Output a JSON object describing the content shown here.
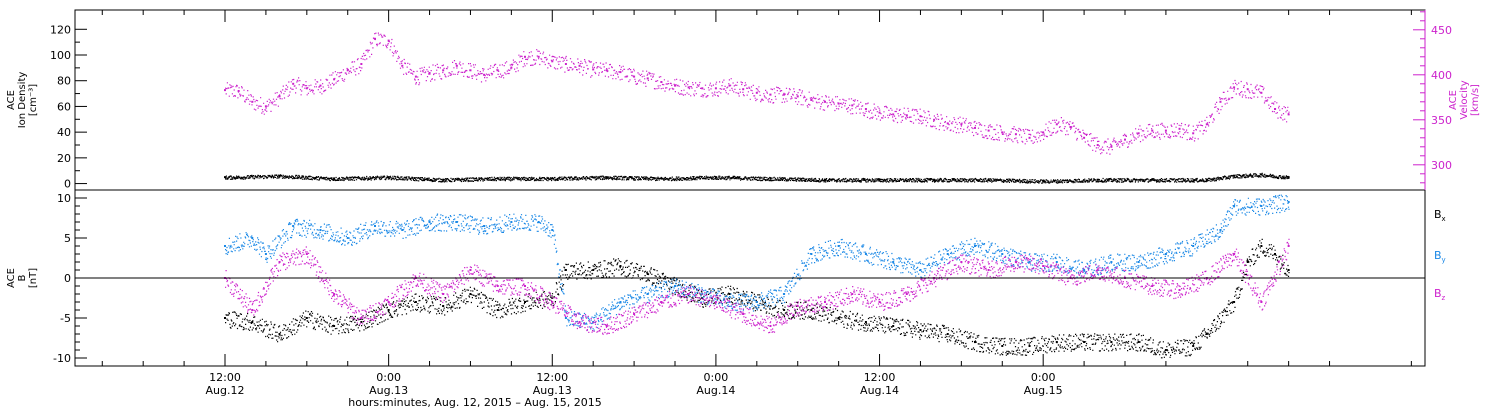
{
  "chart_data": [
    {
      "type": "scatter",
      "panel": "top",
      "ylabel_left": [
        "ACE",
        "Ion Density",
        "[cm⁻³]"
      ],
      "ylabel_right": [
        "ACE",
        "Velocity",
        "[km/s]"
      ],
      "left_axis": {
        "range": [
          -5,
          135
        ],
        "ticks": [
          0,
          20,
          40,
          60,
          80,
          100,
          120
        ]
      },
      "right_axis": {
        "range": [
          272,
          472
        ],
        "ticks": [
          300,
          350,
          400,
          450
        ],
        "color": "#cc22cc"
      },
      "series": [
        {
          "axis": "right",
          "color": "#cc22cc",
          "points": [
            [
              0,
              383
            ],
            [
              1,
              382
            ],
            [
              2,
              370
            ],
            [
              3,
              365
            ],
            [
              4,
              376
            ],
            [
              5,
              390
            ],
            [
              6,
              385
            ],
            [
              7,
              388
            ],
            [
              8,
              395
            ],
            [
              9,
              405
            ],
            [
              10,
              412
            ],
            [
              11,
              440
            ],
            [
              12,
              438
            ],
            [
              13,
              410
            ],
            [
              14,
              398
            ],
            [
              15,
              402
            ],
            [
              16,
              405
            ],
            [
              17,
              410
            ],
            [
              18,
              405
            ],
            [
              19,
              400
            ],
            [
              20,
              405
            ],
            [
              21,
              408
            ],
            [
              22,
              420
            ],
            [
              23,
              420
            ],
            [
              24,
              415
            ],
            [
              25,
              412
            ],
            [
              26,
              410
            ],
            [
              27,
              406
            ],
            [
              28,
              405
            ],
            [
              29,
              403
            ],
            [
              30,
              398
            ],
            [
              31,
              396
            ],
            [
              32,
              392
            ],
            [
              33,
              388
            ],
            [
              34,
              386
            ],
            [
              35,
              385
            ],
            [
              36,
              385
            ],
            [
              37,
              388
            ],
            [
              38,
              384
            ],
            [
              39,
              380
            ],
            [
              40,
              378
            ],
            [
              41,
              378
            ],
            [
              42,
              376
            ],
            [
              43,
              372
            ],
            [
              44,
              370
            ],
            [
              45,
              368
            ],
            [
              46,
              366
            ],
            [
              47,
              362
            ],
            [
              48,
              358
            ],
            [
              49,
              356
            ],
            [
              50,
              355
            ],
            [
              51,
              354
            ],
            [
              52,
              350
            ],
            [
              53,
              346
            ],
            [
              54,
              345
            ],
            [
              55,
              341
            ],
            [
              56,
              338
            ],
            [
              57,
              336
            ],
            [
              58,
              334
            ],
            [
              59,
              330
            ],
            [
              60,
              336
            ],
            [
              61,
              345
            ],
            [
              62,
              342
            ],
            [
              63,
              330
            ],
            [
              64,
              322
            ],
            [
              65,
              320
            ],
            [
              66,
              328
            ],
            [
              67,
              335
            ],
            [
              68,
              338
            ],
            [
              69,
              338
            ],
            [
              70,
              340
            ],
            [
              71,
              335
            ],
            [
              72,
              345
            ],
            [
              73,
              370
            ],
            [
              74,
              386
            ],
            [
              75,
              384
            ],
            [
              76,
              380
            ],
            [
              77,
              362
            ],
            [
              78,
              356
            ]
          ]
        },
        {
          "axis": "left",
          "color": "#000000",
          "points": [
            [
              0,
              5
            ],
            [
              4,
              6
            ],
            [
              8,
              4
            ],
            [
              12,
              5
            ],
            [
              16,
              3
            ],
            [
              20,
              4
            ],
            [
              24,
              4
            ],
            [
              28,
              5
            ],
            [
              32,
              4
            ],
            [
              36,
              5
            ],
            [
              40,
              4
            ],
            [
              44,
              3
            ],
            [
              48,
              3
            ],
            [
              52,
              3
            ],
            [
              56,
              3
            ],
            [
              60,
              2
            ],
            [
              64,
              3
            ],
            [
              68,
              3
            ],
            [
              72,
              3
            ],
            [
              74,
              6
            ],
            [
              76,
              7
            ],
            [
              78,
              5
            ]
          ]
        }
      ]
    },
    {
      "type": "scatter",
      "panel": "bottom",
      "ylabel_left": [
        "ACE",
        "B",
        "[nT]"
      ],
      "y_axis": {
        "range": [
          -11,
          11
        ],
        "ticks": [
          -10,
          -5,
          0,
          5,
          10
        ]
      },
      "zero_line": true,
      "legend": [
        {
          "label": "B",
          "sub": "x",
          "color": "#000000"
        },
        {
          "label": "B",
          "sub": "y",
          "color": "#1a88e6"
        },
        {
          "label": "B",
          "sub": "z",
          "color": "#cc22cc"
        }
      ],
      "series": [
        {
          "name": "Bx",
          "color": "#000000",
          "points": [
            [
              0,
              -5
            ],
            [
              2,
              -5.5
            ],
            [
              4,
              -7
            ],
            [
              6,
              -5
            ],
            [
              8,
              -6
            ],
            [
              10,
              -5.5
            ],
            [
              12,
              -4
            ],
            [
              14,
              -3
            ],
            [
              16,
              -3.5
            ],
            [
              18,
              -2
            ],
            [
              20,
              -4
            ],
            [
              22,
              -3
            ],
            [
              24,
              -2.5
            ],
            [
              25,
              1
            ],
            [
              27,
              1
            ],
            [
              29,
              1.5
            ],
            [
              31,
              0.5
            ],
            [
              33,
              -1
            ],
            [
              35,
              -2.5
            ],
            [
              37,
              -2
            ],
            [
              39,
              -3
            ],
            [
              41,
              -4
            ],
            [
              43,
              -4
            ],
            [
              45,
              -5
            ],
            [
              47,
              -5.5
            ],
            [
              49,
              -6
            ],
            [
              51,
              -6.5
            ],
            [
              53,
              -7
            ],
            [
              55,
              -8
            ],
            [
              57,
              -8.5
            ],
            [
              59,
              -8.5
            ],
            [
              61,
              -8
            ],
            [
              63,
              -8
            ],
            [
              65,
              -8
            ],
            [
              67,
              -8
            ],
            [
              69,
              -9
            ],
            [
              71,
              -8.5
            ],
            [
              72,
              -7
            ],
            [
              74,
              -3
            ],
            [
              75,
              2
            ],
            [
              76,
              4
            ],
            [
              77,
              3
            ],
            [
              78,
              1
            ]
          ]
        },
        {
          "name": "By",
          "color": "#1a88e6",
          "points": [
            [
              0,
              4
            ],
            [
              2,
              5
            ],
            [
              3,
              3
            ],
            [
              5,
              6.5
            ],
            [
              7,
              6
            ],
            [
              9,
              5
            ],
            [
              11,
              6.5
            ],
            [
              13,
              6
            ],
            [
              15,
              7
            ],
            [
              17,
              7
            ],
            [
              19,
              6.5
            ],
            [
              21,
              7
            ],
            [
              23,
              7
            ],
            [
              24,
              6
            ],
            [
              25,
              -5
            ],
            [
              27,
              -5.5
            ],
            [
              29,
              -3
            ],
            [
              31,
              -2
            ],
            [
              33,
              -1
            ],
            [
              35,
              -2
            ],
            [
              37,
              -3
            ],
            [
              39,
              -3
            ],
            [
              41,
              -2
            ],
            [
              43,
              3
            ],
            [
              45,
              4
            ],
            [
              47,
              3
            ],
            [
              49,
              2
            ],
            [
              51,
              1
            ],
            [
              53,
              3
            ],
            [
              55,
              4
            ],
            [
              57,
              3
            ],
            [
              59,
              2
            ],
            [
              61,
              2
            ],
            [
              63,
              1
            ],
            [
              65,
              2
            ],
            [
              67,
              2
            ],
            [
              69,
              3
            ],
            [
              71,
              4
            ],
            [
              73,
              6
            ],
            [
              74,
              9
            ],
            [
              76,
              9
            ],
            [
              78,
              9.5
            ]
          ]
        },
        {
          "name": "Bz",
          "color": "#cc22cc",
          "points": [
            [
              0,
              0
            ],
            [
              2,
              -4
            ],
            [
              4,
              2
            ],
            [
              6,
              3
            ],
            [
              8,
              -2
            ],
            [
              10,
              -5
            ],
            [
              12,
              -3
            ],
            [
              14,
              0
            ],
            [
              16,
              -2
            ],
            [
              18,
              1
            ],
            [
              20,
              -1
            ],
            [
              22,
              -1
            ],
            [
              24,
              -3
            ],
            [
              26,
              -5.5
            ],
            [
              28,
              -6
            ],
            [
              30,
              -4.5
            ],
            [
              32,
              -3
            ],
            [
              34,
              -2
            ],
            [
              36,
              -3
            ],
            [
              38,
              -4.5
            ],
            [
              40,
              -6
            ],
            [
              42,
              -3.5
            ],
            [
              44,
              -3
            ],
            [
              46,
              -2
            ],
            [
              48,
              -3
            ],
            [
              50,
              -2
            ],
            [
              52,
              0
            ],
            [
              54,
              2
            ],
            [
              56,
              1
            ],
            [
              58,
              2
            ],
            [
              60,
              1.5
            ],
            [
              62,
              0
            ],
            [
              64,
              1
            ],
            [
              66,
              0
            ],
            [
              68,
              -1
            ],
            [
              70,
              -1.5
            ],
            [
              72,
              0
            ],
            [
              74,
              3
            ],
            [
              76,
              -3
            ],
            [
              78,
              4
            ]
          ]
        }
      ]
    }
  ],
  "x_axis": {
    "range": [
      -11,
      88
    ],
    "ticks": [
      {
        "hour": 0,
        "time": "12:00",
        "date": "Aug.12"
      },
      {
        "hour": 12,
        "time": "0:00",
        "date": "Aug.13"
      },
      {
        "hour": 24,
        "time": "12:00",
        "date": "Aug.13"
      },
      {
        "hour": 36,
        "time": "0:00",
        "date": "Aug.14"
      },
      {
        "hour": 48,
        "time": "12:00",
        "date": "Aug.14"
      },
      {
        "hour": 60,
        "time": "0:00",
        "date": "Aug.15"
      }
    ],
    "label": "hours:minutes, Aug. 12, 2015 – Aug. 15, 2015"
  }
}
